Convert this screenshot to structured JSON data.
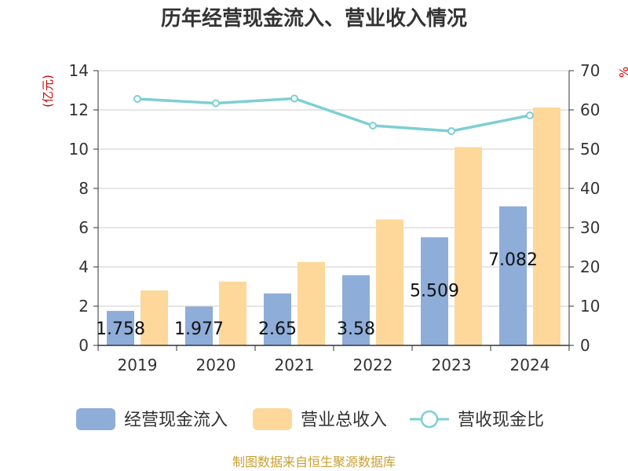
{
  "chart_data": {
    "type": "bar",
    "title": "历年经营现金流入、营业收入情况",
    "categories": [
      "2019",
      "2020",
      "2021",
      "2022",
      "2023",
      "2024"
    ],
    "series": [
      {
        "name": "经营现金流入",
        "type": "bar",
        "axis": "left",
        "color": "#8eadd9",
        "values": [
          1.758,
          1.977,
          2.65,
          3.58,
          5.509,
          7.082
        ],
        "data_labels": [
          "1.758",
          "1.977",
          "2.65",
          "3.58",
          "5.509",
          "7.082"
        ]
      },
      {
        "name": "营业总收入",
        "type": "bar",
        "axis": "left",
        "color": "#fdd89a",
        "values": [
          2.8,
          3.25,
          4.25,
          6.42,
          10.1,
          12.12
        ]
      },
      {
        "name": "营收现金比",
        "type": "line",
        "axis": "right",
        "color": "#7ecfd3",
        "values": [
          62.8,
          61.7,
          62.9,
          56.0,
          54.6,
          58.6
        ]
      }
    ],
    "y_left": {
      "label": "(亿元)",
      "ylim": [
        0,
        14
      ],
      "ticks": [
        "0",
        "2",
        "4",
        "6",
        "8",
        "10",
        "12",
        "14"
      ]
    },
    "y_right": {
      "label": "%",
      "ylim": [
        0,
        70
      ],
      "ticks": [
        "0",
        "10",
        "20",
        "30",
        "40",
        "50",
        "60",
        "70"
      ]
    },
    "grid": true,
    "legend": "bottom-center"
  },
  "source": "制图数据来自恒生聚源数据库"
}
